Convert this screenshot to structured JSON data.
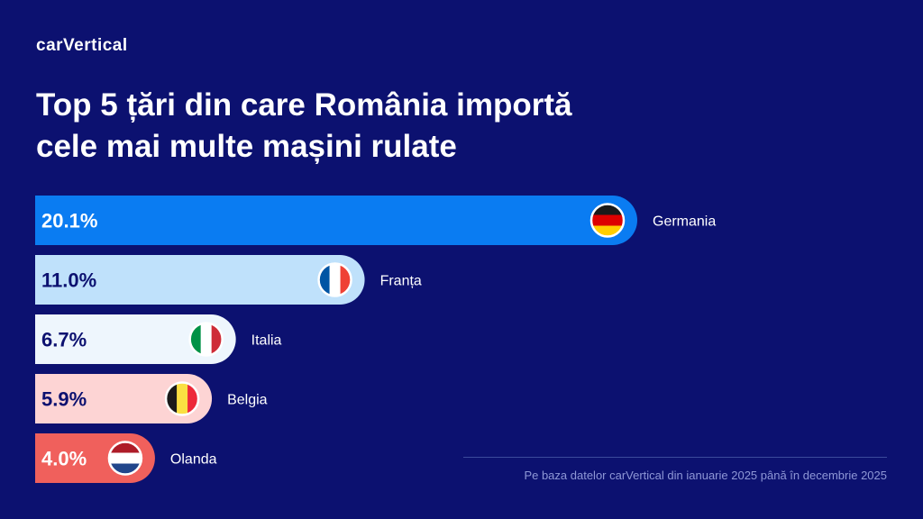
{
  "brand": {
    "logo_text": "carVertical"
  },
  "title": {
    "line1": "Top 5 țări din care România importă",
    "line2": "cele mai multe mașini rulate"
  },
  "footnote": "Pe baza datelor carVertical din ianuarie 2025 până în decembrie 2025",
  "chart_data": {
    "type": "bar",
    "orientation": "horizontal",
    "title": "Top 5 țări din care România importă cele mai multe mașini rulate",
    "categories": [
      "Germania",
      "Franța",
      "Italia",
      "Belgia",
      "Olanda"
    ],
    "values": [
      20.1,
      11.0,
      6.7,
      5.9,
      4.0
    ],
    "value_labels": [
      "20.1%",
      "11.0%",
      "6.7%",
      "5.9%",
      "4.0%"
    ],
    "unit": "%",
    "bar_colors": [
      "#0a7cf2",
      "#bfe1fb",
      "#eef6fd",
      "#fdd4d4",
      "#f0605c"
    ],
    "value_label_colors": [
      "#ffffff",
      "#0c1170",
      "#0c1170",
      "#0c1170",
      "#ffffff"
    ],
    "flags": [
      "germany-flag-icon",
      "france-flag-icon",
      "italy-flag-icon",
      "belgium-flag-icon",
      "netherlands-flag-icon"
    ],
    "xlim": [
      0,
      20.1
    ],
    "grid": false,
    "legend": "none"
  }
}
